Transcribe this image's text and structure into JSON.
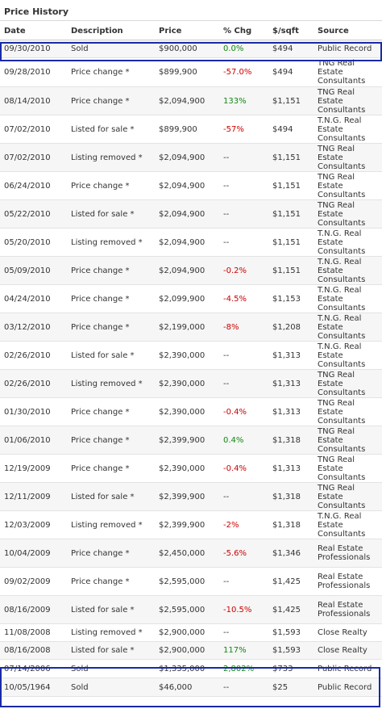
{
  "title": "Price History",
  "columns": [
    "Date",
    "Description",
    "Price",
    "% Chg",
    "$/sqft",
    "Source"
  ],
  "colors": {
    "negative": "#cc0000",
    "positive": "#118811",
    "highlight": "#1a2aa8"
  },
  "rows": [
    {
      "date": "09/30/2010",
      "desc": "Sold",
      "price": "$900,000",
      "chg": "0.0%",
      "sqft": "$494",
      "source": "Public Record"
    },
    {
      "date": "09/28/2010",
      "desc": "Price change *",
      "price": "$899,900",
      "chg": "-57.0%",
      "sqft": "$494",
      "source": "TNG Real Estate Consultants"
    },
    {
      "date": "08/14/2010",
      "desc": "Price change *",
      "price": "$2,094,900",
      "chg": "133%",
      "sqft": "$1,151",
      "source": "TNG Real Estate Consultants"
    },
    {
      "date": "07/02/2010",
      "desc": "Listed for sale *",
      "price": "$899,900",
      "chg": "-57%",
      "sqft": "$494",
      "source": "T.N.G. Real Estate Consultants"
    },
    {
      "date": "07/02/2010",
      "desc": "Listing removed *",
      "price": "$2,094,900",
      "chg": "--",
      "sqft": "$1,151",
      "source": "TNG Real Estate Consultants"
    },
    {
      "date": "06/24/2010",
      "desc": "Price change *",
      "price": "$2,094,900",
      "chg": "--",
      "sqft": "$1,151",
      "source": "TNG Real Estate Consultants"
    },
    {
      "date": "05/22/2010",
      "desc": "Listed for sale *",
      "price": "$2,094,900",
      "chg": "--",
      "sqft": "$1,151",
      "source": "TNG Real Estate Consultants"
    },
    {
      "date": "05/20/2010",
      "desc": "Listing removed *",
      "price": "$2,094,900",
      "chg": "--",
      "sqft": "$1,151",
      "source": "T.N.G. Real Estate Consultants"
    },
    {
      "date": "05/09/2010",
      "desc": "Price change *",
      "price": "$2,094,900",
      "chg": "-0.2%",
      "sqft": "$1,151",
      "source": "T.N.G. Real Estate Consultants"
    },
    {
      "date": "04/24/2010",
      "desc": "Price change *",
      "price": "$2,099,900",
      "chg": "-4.5%",
      "sqft": "$1,153",
      "source": "T.N.G. Real Estate Consultants"
    },
    {
      "date": "03/12/2010",
      "desc": "Price change *",
      "price": "$2,199,000",
      "chg": "-8%",
      "sqft": "$1,208",
      "source": "T.N.G. Real Estate Consultants"
    },
    {
      "date": "02/26/2010",
      "desc": "Listed for sale *",
      "price": "$2,390,000",
      "chg": "--",
      "sqft": "$1,313",
      "source": "T.N.G. Real Estate Consultants"
    },
    {
      "date": "02/26/2010",
      "desc": "Listing removed *",
      "price": "$2,390,000",
      "chg": "--",
      "sqft": "$1,313",
      "source": "TNG Real Estate Consultants"
    },
    {
      "date": "01/30/2010",
      "desc": "Price change *",
      "price": "$2,390,000",
      "chg": "-0.4%",
      "sqft": "$1,313",
      "source": "TNG Real Estate Consultants"
    },
    {
      "date": "01/06/2010",
      "desc": "Price change *",
      "price": "$2,399,900",
      "chg": "0.4%",
      "sqft": "$1,318",
      "source": "TNG Real Estate Consultants"
    },
    {
      "date": "12/19/2009",
      "desc": "Price change *",
      "price": "$2,390,000",
      "chg": "-0.4%",
      "sqft": "$1,313",
      "source": "TNG Real Estate Consultants"
    },
    {
      "date": "12/11/2009",
      "desc": "Listed for sale *",
      "price": "$2,399,900",
      "chg": "--",
      "sqft": "$1,318",
      "source": "TNG Real Estate Consultants"
    },
    {
      "date": "12/03/2009",
      "desc": "Listing removed *",
      "price": "$2,399,900",
      "chg": "-2%",
      "sqft": "$1,318",
      "source": "T.N.G. Real Estate Consultants"
    },
    {
      "date": "10/04/2009",
      "desc": "Price change *",
      "price": "$2,450,000",
      "chg": "-5.6%",
      "sqft": "$1,346",
      "source": "Real Estate Professionals"
    },
    {
      "date": "09/02/2009",
      "desc": "Price change *",
      "price": "$2,595,000",
      "chg": "--",
      "sqft": "$1,425",
      "source": "Real Estate Professionals"
    },
    {
      "date": "08/16/2009",
      "desc": "Listed for sale *",
      "price": "$2,595,000",
      "chg": "-10.5%",
      "sqft": "$1,425",
      "source": "Real Estate Professionals"
    },
    {
      "date": "11/08/2008",
      "desc": "Listing removed *",
      "price": "$2,900,000",
      "chg": "--",
      "sqft": "$1,593",
      "source": "Close Realty"
    },
    {
      "date": "08/16/2008",
      "desc": "Listed for sale *",
      "price": "$2,900,000",
      "chg": "117%",
      "sqft": "$1,593",
      "source": "Close Realty"
    },
    {
      "date": "07/14/2006",
      "desc": "Sold",
      "price": "$1,335,000",
      "chg": "2,802%",
      "sqft": "$733",
      "source": "Public Record"
    },
    {
      "date": "10/05/1964",
      "desc": "Sold",
      "price": "$46,000",
      "chg": "--",
      "sqft": "$25",
      "source": "Public Record"
    }
  ]
}
